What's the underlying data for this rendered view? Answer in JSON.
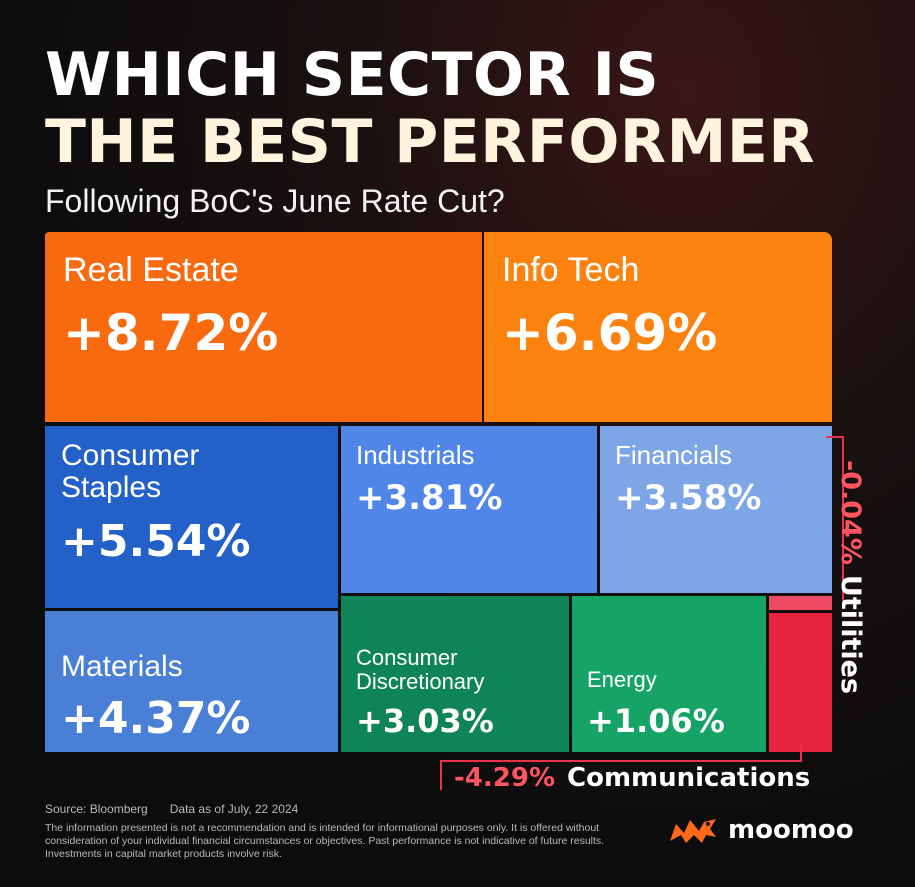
{
  "header": {
    "title_line1": "WHICH SECTOR IS",
    "title_line2": "THE BEST PERFORMER",
    "subtitle": "Following BoC's June Rate Cut?"
  },
  "chart_data": {
    "type": "treemap",
    "unit": "%",
    "items": [
      {
        "name": "Real Estate",
        "label": "Real Estate",
        "value": 8.72,
        "display": "+8.72%",
        "color": "#f86a10"
      },
      {
        "name": "Info Tech",
        "label": "Info Tech",
        "value": 6.69,
        "display": "+6.69%",
        "color": "#fc820f"
      },
      {
        "name": "Consumer Staples",
        "label": "Consumer\nStaples",
        "value": 5.54,
        "display": "+5.54%",
        "color": "#2360c8"
      },
      {
        "name": "Industrials",
        "label": "Industrials",
        "value": 3.81,
        "display": "+3.81%",
        "color": "#4f86e8"
      },
      {
        "name": "Financials",
        "label": "Financials",
        "value": 3.58,
        "display": "+3.58%",
        "color": "#7ea5e6"
      },
      {
        "name": "Materials",
        "label": "Materials",
        "value": 4.37,
        "display": "+4.37%",
        "color": "#4a7fd6"
      },
      {
        "name": "Consumer Discretionary",
        "label": "Consumer\nDiscretionary",
        "value": 3.03,
        "display": "+3.03%",
        "color": "#0f8456"
      },
      {
        "name": "Energy",
        "label": "Energy",
        "value": 1.06,
        "display": "+1.06%",
        "color": "#16a466"
      },
      {
        "name": "Utilities",
        "label": "Utilities",
        "value": -0.04,
        "display": "-0.04%",
        "color": "#f04a62"
      },
      {
        "name": "Communications",
        "label": "Communications",
        "value": -4.29,
        "display": "-4.29%",
        "color": "#e8233f"
      }
    ]
  },
  "footer": {
    "source": "Source: Bloomberg",
    "date": "Data as of July, 22 2024",
    "disclaimer": "The information presented is not a recommendation and is intended for informational purposes only. It is offered without consideration of your individual financial circumstances or objectives. Past performance is not indicative of future results. Investments in capital market products involve risk."
  },
  "brand": {
    "name": "moomoo",
    "logo_icon": "moomoo-bull-logo",
    "color": "#ff6a1a"
  }
}
